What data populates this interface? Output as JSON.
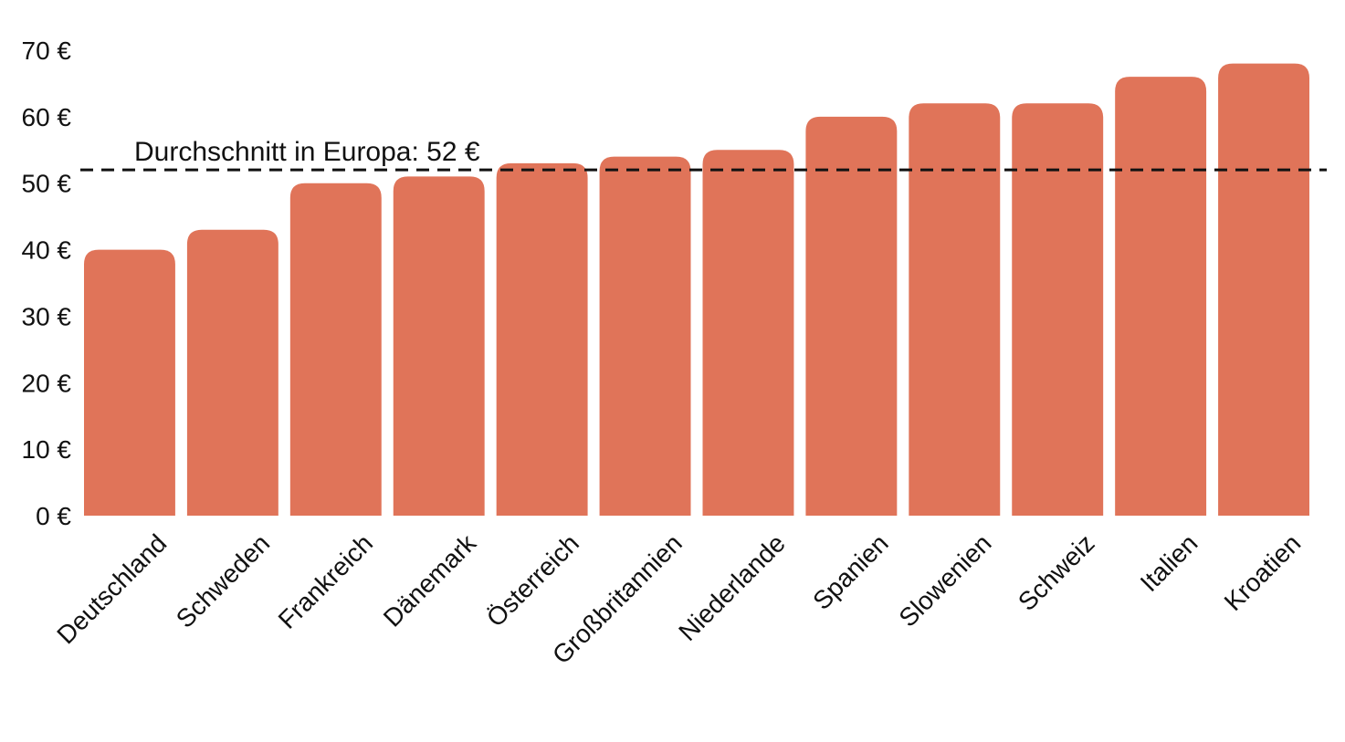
{
  "chart_data": {
    "type": "bar",
    "title": "",
    "xlabel": "",
    "ylabel": "",
    "categories": [
      "Deutschland",
      "Schweden",
      "Frankreich",
      "Dänemark",
      "Österreich",
      "Großbritannien",
      "Niederlande",
      "Spanien",
      "Slowenien",
      "Schweiz",
      "Italien",
      "Kroatien"
    ],
    "values": [
      40,
      43,
      50,
      51,
      53,
      54,
      55,
      60,
      62,
      62,
      66,
      68
    ],
    "ylim": [
      0,
      70
    ],
    "yticks": [
      {
        "value": 0,
        "label": "0 €"
      },
      {
        "value": 10,
        "label": "10 €"
      },
      {
        "value": 20,
        "label": "20 €"
      },
      {
        "value": 30,
        "label": "30 €"
      },
      {
        "value": 40,
        "label": "40 €"
      },
      {
        "value": 50,
        "label": "50 €"
      },
      {
        "value": 60,
        "label": "60 €"
      },
      {
        "value": 70,
        "label": "70 €"
      }
    ],
    "grid": false,
    "bar_color": "#e07459",
    "reference_line": {
      "value": 52,
      "label": "Durchschnitt in Europa: 52 €",
      "style": "dashed",
      "color": "#111111"
    }
  }
}
